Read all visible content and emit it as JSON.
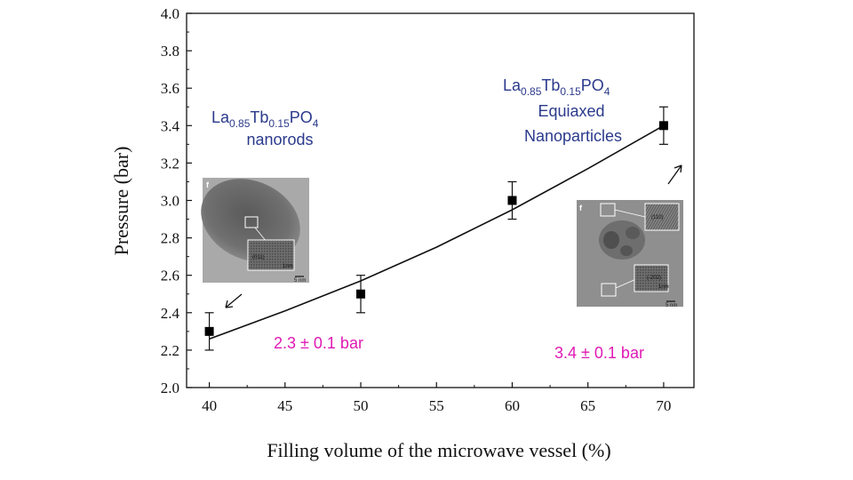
{
  "chart_data": {
    "type": "scatter",
    "title": "",
    "xlabel": "Filling volume of the microwave vessel (%)",
    "ylabel": "Pressure (bar)",
    "xlim": [
      38.5,
      72
    ],
    "ylim": [
      2.0,
      4.0
    ],
    "xticks": [
      40,
      45,
      50,
      55,
      60,
      65,
      70
    ],
    "yticks": [
      2.0,
      2.2,
      2.4,
      2.6,
      2.8,
      3.0,
      3.2,
      3.4,
      3.6,
      3.8,
      4.0
    ],
    "ytick_labels": [
      "2.0",
      "2.2",
      "2.4",
      "2.6",
      "2.8",
      "3.0",
      "3.2",
      "3.4",
      "3.6",
      "3.8",
      "4.0"
    ],
    "grid": false,
    "series": [
      {
        "x": [
          40,
          50,
          60,
          70
        ],
        "y": [
          2.3,
          2.5,
          3.0,
          3.4
        ],
        "yerr": [
          0.1,
          0.1,
          0.1,
          0.1
        ],
        "marker": "square",
        "color": "#000000",
        "fit_curve": {
          "x": [
            40,
            45,
            50,
            55,
            60,
            65,
            70
          ],
          "y": [
            2.26,
            2.41,
            2.57,
            2.75,
            2.95,
            3.17,
            3.4
          ]
        }
      }
    ],
    "annotations": {
      "left_label": {
        "parts": [
          "La",
          "0.85",
          "Tb",
          "0.15",
          "PO",
          "4"
        ],
        "line2": "nanorods"
      },
      "right_label": {
        "parts": [
          "La",
          "0.85",
          "Tb",
          "0.15",
          "PO",
          "4"
        ],
        "line2": "Equiaxed",
        "line3": "Nanoparticles"
      },
      "left_value": "2.3 ± 0.1 bar",
      "right_value": "3.4 ± 0.1 bar",
      "left_inset": {
        "panel_letter": "f",
        "lattice_label": "(011)",
        "scale_text": "5 nm",
        "inset_scale": "1nm"
      },
      "right_inset": {
        "panel_letter": "f",
        "lattice_label_1": "(110)",
        "lattice_label_2": "(-202)",
        "scale_text": "5 nm",
        "inset_scale": "1nm"
      }
    },
    "colors": {
      "annotation_blue": "#2b3a8c",
      "annotation_magenta": "#e01ab4",
      "marker": "#000000"
    }
  }
}
